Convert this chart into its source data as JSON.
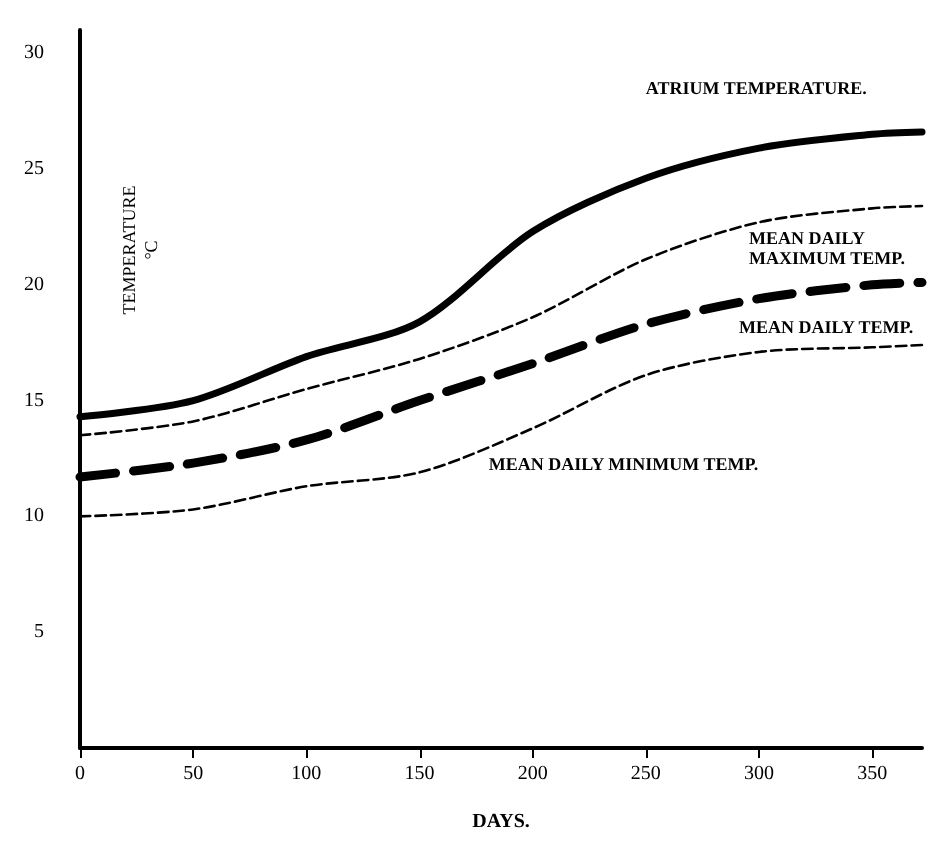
{
  "chart_data": {
    "type": "line",
    "xlabel": "DAYS.",
    "ylabel": "TEMPERATURE\n°C",
    "x": [
      0,
      50,
      100,
      150,
      200,
      250,
      300,
      350,
      372
    ],
    "series": [
      {
        "name": "ATRIUM TEMPERATURE.",
        "color": "#000000",
        "line_style": "solid",
        "values": [
          14.3,
          15,
          16.9,
          18.4,
          22.3,
          24.6,
          25.9,
          26.5,
          26.6
        ]
      },
      {
        "name": "MEAN DAILY\nMAXIMUM TEMP.",
        "color": "#000000",
        "line_style": "dashed",
        "values": [
          13.5,
          14.1,
          15.5,
          16.8,
          18.6,
          21.1,
          22.7,
          23.3,
          23.4
        ]
      },
      {
        "name": "MEAN DAILY TEMP.",
        "color": "#000000",
        "line_style": "dashed",
        "values": [
          11.7,
          12.3,
          13.3,
          15,
          16.6,
          18.3,
          19.4,
          20,
          20.1
        ]
      },
      {
        "name": "MEAN DAILY MINIMUM TEMP.",
        "color": "#000000",
        "line_style": "dashed",
        "values": [
          10,
          10.3,
          11.3,
          11.9,
          13.8,
          16.1,
          17.1,
          17.3,
          17.4
        ]
      }
    ],
    "xlim": [
      0,
      372
    ],
    "ylim": [
      0,
      31
    ],
    "xticks": [
      0,
      50,
      100,
      150,
      200,
      250,
      300,
      350
    ],
    "yticks": [
      5,
      10,
      15,
      20,
      25,
      30
    ],
    "grid": false,
    "marker": "none"
  }
}
